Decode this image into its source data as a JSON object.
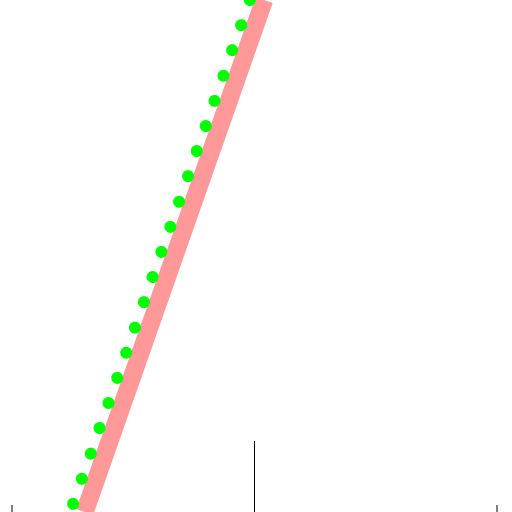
{
  "chart_data": {
    "type": "line",
    "xlim": [
      -1,
      1
    ],
    "ylim": [
      0,
      1
    ],
    "xticks": [
      -1,
      0,
      1
    ],
    "grid": false,
    "series": [
      {
        "color": "#ff9999",
        "style": "solid",
        "x": [
          -0.7,
          0.04
        ],
        "values": [
          0,
          1
        ]
      },
      {
        "color": "#00ff00",
        "style": "dotted",
        "x": [
          -0.748,
          -0.712,
          -0.675,
          -0.639,
          -0.602,
          -0.566,
          -0.529,
          -0.493,
          -0.456,
          -0.42,
          -0.384,
          -0.347,
          -0.311,
          -0.274,
          -0.238,
          -0.201,
          -0.165,
          -0.128,
          -0.092,
          -0.055,
          -0.019
        ],
        "values": [
          0.016,
          0.065,
          0.114,
          0.164,
          0.213,
          0.262,
          0.311,
          0.36,
          0.41,
          0.459,
          0.508,
          0.557,
          0.606,
          0.656,
          0.705,
          0.754,
          0.803,
          0.852,
          0.902,
          0.951,
          1.0
        ]
      }
    ]
  }
}
